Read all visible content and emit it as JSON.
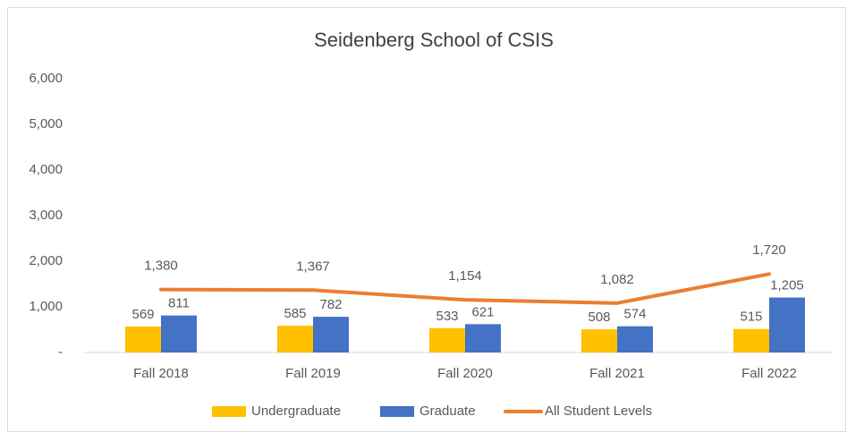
{
  "chart_data": {
    "type": "bar",
    "title": "Seidenberg School of CSIS",
    "categories": [
      "Fall 2018",
      "Fall 2019",
      "Fall 2020",
      "Fall 2021",
      "Fall 2022"
    ],
    "series": [
      {
        "name": "Undergraduate",
        "type": "bar",
        "color": "#ffc000",
        "values": [
          569,
          585,
          533,
          508,
          515
        ]
      },
      {
        "name": "Graduate",
        "type": "bar",
        "color": "#4472c4",
        "values": [
          811,
          782,
          621,
          574,
          1205
        ],
        "value_labels": [
          "811",
          "782",
          "621",
          "574",
          "1,205"
        ]
      },
      {
        "name": "All Student Levels",
        "type": "line",
        "color": "#ed7d31",
        "values": [
          1380,
          1367,
          1154,
          1082,
          1720
        ],
        "value_labels": [
          "1,380",
          "1,367",
          "1,154",
          "1,082",
          "1,720"
        ]
      }
    ],
    "ylim": [
      0,
      6000
    ],
    "yticks": [
      {
        "value": 0,
        "label": "-"
      },
      {
        "value": 1000,
        "label": "1,000"
      },
      {
        "value": 2000,
        "label": "2,000"
      },
      {
        "value": 3000,
        "label": "3,000"
      },
      {
        "value": 4000,
        "label": "4,000"
      },
      {
        "value": 5000,
        "label": "5,000"
      },
      {
        "value": 6000,
        "label": "6,000"
      }
    ],
    "grid": false,
    "legend": "bottom"
  }
}
